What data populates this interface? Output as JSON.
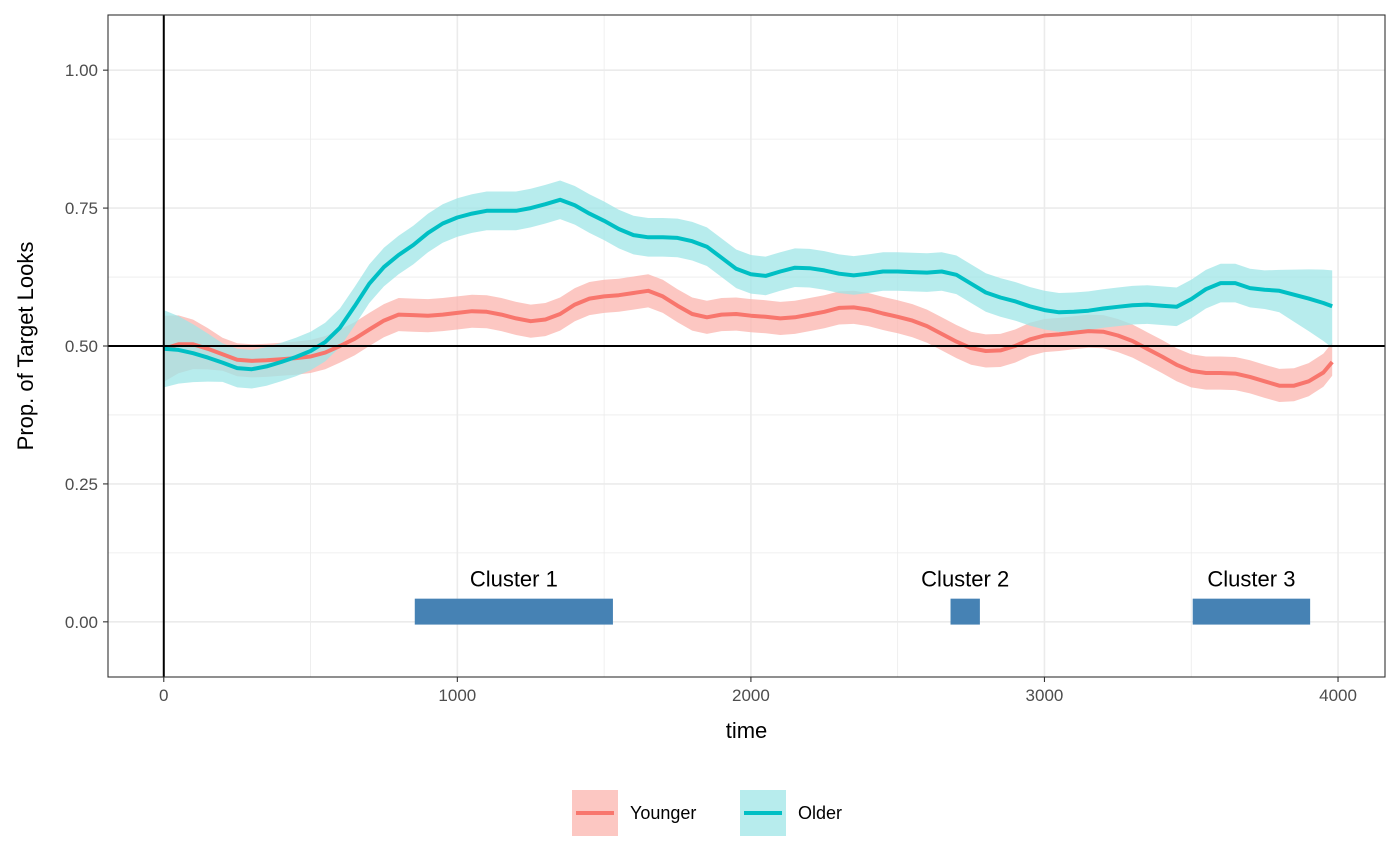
{
  "chart_data": {
    "type": "line",
    "title": "",
    "xlabel": "time",
    "ylabel": "Prop. of Target Looks",
    "xlim": [
      -190,
      4160
    ],
    "ylim": [
      -0.1,
      1.1
    ],
    "x_ticks": [
      0,
      1000,
      2000,
      3000,
      4000
    ],
    "x_tick_labels": [
      "0",
      "1000",
      "2000",
      "3000",
      "4000"
    ],
    "y_ticks": [
      0,
      0.25,
      0.5,
      0.75,
      1.0
    ],
    "y_tick_labels": [
      "0.00",
      "0.25",
      "0.50",
      "0.75",
      "1.00"
    ],
    "grid": true,
    "reference_lines": {
      "vertical_x": 0,
      "horizontal_y": 0.5
    },
    "legend_position": "bottom",
    "series": [
      {
        "name": "Younger",
        "color": "#F8766D",
        "ribbon_color": "#FBB4AE",
        "points": [
          [
            0,
            0.495
          ],
          [
            50,
            0.503
          ],
          [
            100,
            0.503
          ],
          [
            150,
            0.495
          ],
          [
            200,
            0.485
          ],
          [
            250,
            0.475
          ],
          [
            300,
            0.473
          ],
          [
            350,
            0.474
          ],
          [
            400,
            0.476
          ],
          [
            450,
            0.478
          ],
          [
            500,
            0.481
          ],
          [
            550,
            0.488
          ],
          [
            600,
            0.5
          ],
          [
            650,
            0.513
          ],
          [
            700,
            0.53
          ],
          [
            750,
            0.546
          ],
          [
            800,
            0.557
          ],
          [
            850,
            0.556
          ],
          [
            900,
            0.555
          ],
          [
            950,
            0.557
          ],
          [
            1000,
            0.56
          ],
          [
            1050,
            0.563
          ],
          [
            1100,
            0.562
          ],
          [
            1150,
            0.557
          ],
          [
            1200,
            0.55
          ],
          [
            1250,
            0.545
          ],
          [
            1300,
            0.548
          ],
          [
            1350,
            0.558
          ],
          [
            1400,
            0.575
          ],
          [
            1450,
            0.586
          ],
          [
            1500,
            0.59
          ],
          [
            1550,
            0.592
          ],
          [
            1600,
            0.596
          ],
          [
            1650,
            0.6
          ],
          [
            1700,
            0.59
          ],
          [
            1750,
            0.573
          ],
          [
            1800,
            0.558
          ],
          [
            1850,
            0.552
          ],
          [
            1900,
            0.557
          ],
          [
            1950,
            0.558
          ],
          [
            2000,
            0.555
          ],
          [
            2050,
            0.553
          ],
          [
            2100,
            0.55
          ],
          [
            2150,
            0.552
          ],
          [
            2200,
            0.557
          ],
          [
            2250,
            0.562
          ],
          [
            2300,
            0.569
          ],
          [
            2350,
            0.57
          ],
          [
            2400,
            0.566
          ],
          [
            2450,
            0.559
          ],
          [
            2500,
            0.553
          ],
          [
            2550,
            0.546
          ],
          [
            2600,
            0.536
          ],
          [
            2650,
            0.522
          ],
          [
            2700,
            0.508
          ],
          [
            2750,
            0.496
          ],
          [
            2800,
            0.491
          ],
          [
            2850,
            0.492
          ],
          [
            2900,
            0.5
          ],
          [
            2950,
            0.512
          ],
          [
            3000,
            0.519
          ],
          [
            3050,
            0.521
          ],
          [
            3100,
            0.524
          ],
          [
            3150,
            0.527
          ],
          [
            3200,
            0.526
          ],
          [
            3250,
            0.519
          ],
          [
            3300,
            0.509
          ],
          [
            3350,
            0.495
          ],
          [
            3400,
            0.481
          ],
          [
            3450,
            0.466
          ],
          [
            3500,
            0.455
          ],
          [
            3550,
            0.451
          ],
          [
            3600,
            0.451
          ],
          [
            3650,
            0.45
          ],
          [
            3700,
            0.444
          ],
          [
            3750,
            0.436
          ],
          [
            3800,
            0.428
          ],
          [
            3850,
            0.428
          ],
          [
            3900,
            0.436
          ],
          [
            3950,
            0.452
          ],
          [
            3980,
            0.471
          ]
        ]
      },
      {
        "name": "Older",
        "color": "#00BFC4",
        "ribbon_color": "#9FE5E7",
        "points": [
          [
            0,
            0.495
          ],
          [
            50,
            0.493
          ],
          [
            100,
            0.487
          ],
          [
            150,
            0.479
          ],
          [
            200,
            0.47
          ],
          [
            250,
            0.46
          ],
          [
            300,
            0.458
          ],
          [
            350,
            0.463
          ],
          [
            400,
            0.471
          ],
          [
            450,
            0.48
          ],
          [
            500,
            0.491
          ],
          [
            550,
            0.507
          ],
          [
            600,
            0.533
          ],
          [
            650,
            0.572
          ],
          [
            700,
            0.613
          ],
          [
            750,
            0.643
          ],
          [
            800,
            0.665
          ],
          [
            850,
            0.683
          ],
          [
            900,
            0.705
          ],
          [
            950,
            0.722
          ],
          [
            1000,
            0.733
          ],
          [
            1050,
            0.74
          ],
          [
            1100,
            0.745
          ],
          [
            1150,
            0.745
          ],
          [
            1200,
            0.745
          ],
          [
            1250,
            0.75
          ],
          [
            1300,
            0.757
          ],
          [
            1350,
            0.765
          ],
          [
            1400,
            0.755
          ],
          [
            1450,
            0.74
          ],
          [
            1500,
            0.727
          ],
          [
            1550,
            0.712
          ],
          [
            1600,
            0.701
          ],
          [
            1650,
            0.697
          ],
          [
            1700,
            0.697
          ],
          [
            1750,
            0.696
          ],
          [
            1800,
            0.69
          ],
          [
            1850,
            0.68
          ],
          [
            1900,
            0.66
          ],
          [
            1950,
            0.64
          ],
          [
            2000,
            0.63
          ],
          [
            2050,
            0.627
          ],
          [
            2100,
            0.635
          ],
          [
            2150,
            0.642
          ],
          [
            2200,
            0.641
          ],
          [
            2250,
            0.637
          ],
          [
            2300,
            0.631
          ],
          [
            2350,
            0.628
          ],
          [
            2400,
            0.631
          ],
          [
            2450,
            0.635
          ],
          [
            2500,
            0.635
          ],
          [
            2550,
            0.634
          ],
          [
            2600,
            0.633
          ],
          [
            2650,
            0.635
          ],
          [
            2700,
            0.629
          ],
          [
            2750,
            0.613
          ],
          [
            2800,
            0.597
          ],
          [
            2850,
            0.588
          ],
          [
            2900,
            0.581
          ],
          [
            2950,
            0.572
          ],
          [
            3000,
            0.565
          ],
          [
            3050,
            0.561
          ],
          [
            3100,
            0.562
          ],
          [
            3150,
            0.564
          ],
          [
            3200,
            0.568
          ],
          [
            3250,
            0.571
          ],
          [
            3300,
            0.574
          ],
          [
            3350,
            0.575
          ],
          [
            3400,
            0.573
          ],
          [
            3450,
            0.571
          ],
          [
            3500,
            0.585
          ],
          [
            3550,
            0.603
          ],
          [
            3600,
            0.614
          ],
          [
            3650,
            0.614
          ],
          [
            3700,
            0.605
          ],
          [
            3750,
            0.602
          ],
          [
            3800,
            0.6
          ],
          [
            3850,
            0.593
          ],
          [
            3900,
            0.586
          ],
          [
            3950,
            0.578
          ],
          [
            3980,
            0.572
          ]
        ]
      }
    ],
    "ribbons": {
      "Younger": {
        "lower_offset": [
          0.06,
          0.03,
          0.025
        ],
        "upper_offset": [
          0.06,
          0.03,
          0.035
        ]
      },
      "Older": {
        "lower_offset": [
          0.07,
          0.035,
          0.075
        ],
        "upper_offset": [
          0.07,
          0.035,
          0.065
        ]
      }
    },
    "clusters": [
      {
        "label": "Cluster 1",
        "start": 855,
        "end": 1530,
        "bottom": -0.005,
        "top": -0.005,
        "height": 0.047
      },
      {
        "label": "Cluster 2",
        "start": 2680,
        "end": 2780,
        "bottom": -0.005,
        "top": -0.005,
        "height": 0.047
      },
      {
        "label": "Cluster 3",
        "start": 3505,
        "end": 3905,
        "bottom": -0.005,
        "top": -0.005,
        "height": 0.047
      }
    ],
    "cluster_color": "#4682B4"
  }
}
